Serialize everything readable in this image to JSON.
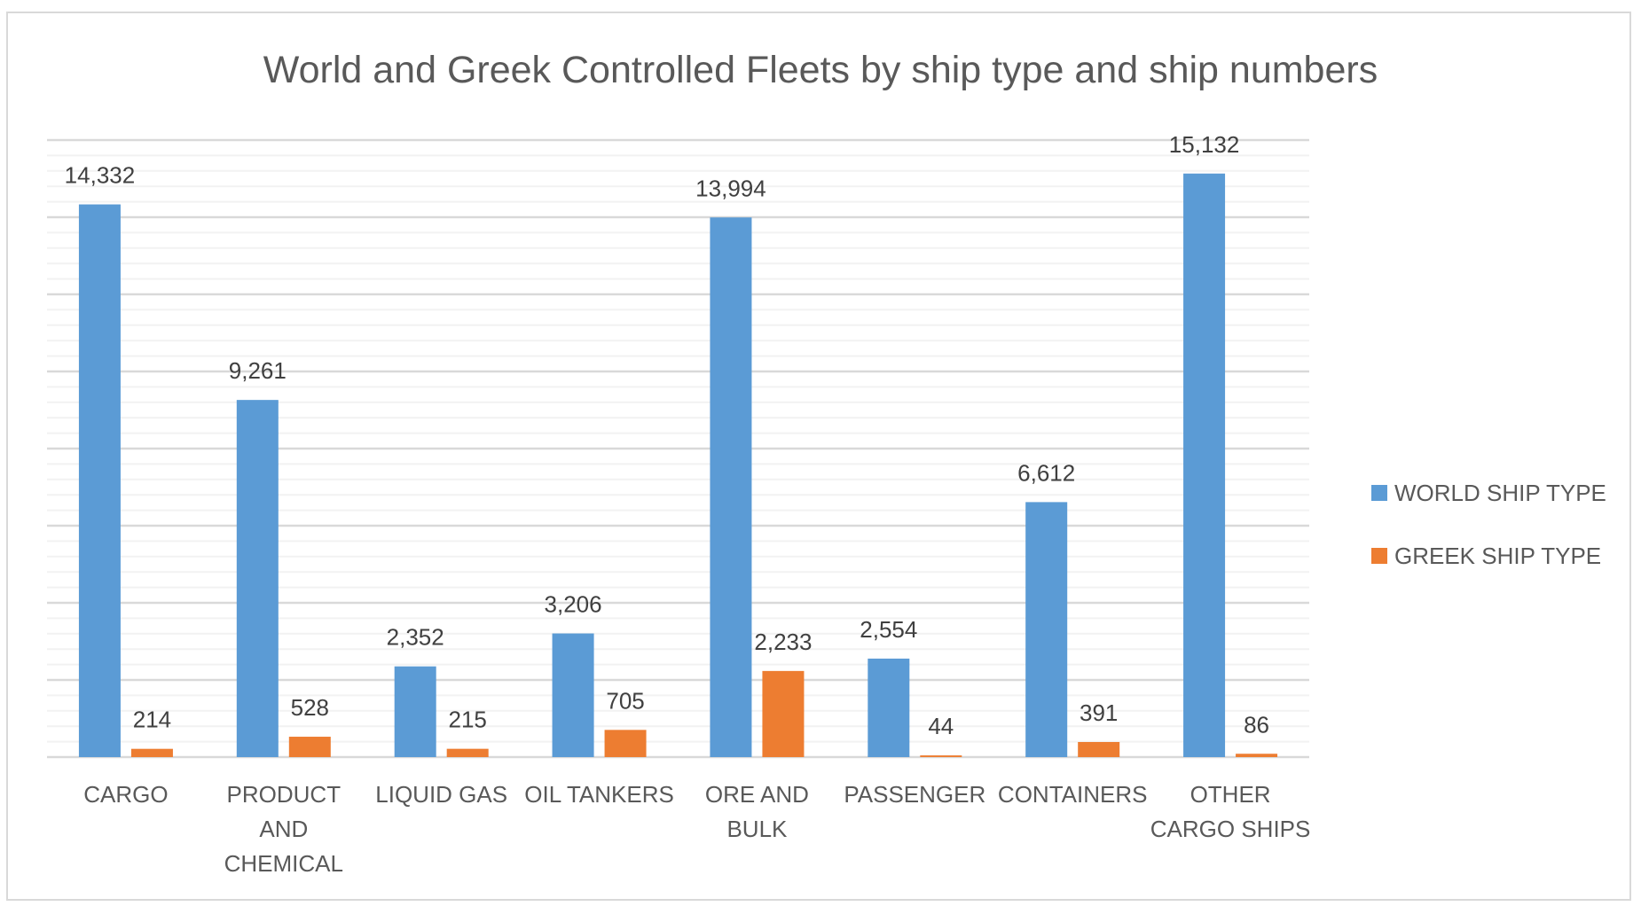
{
  "chart_data": {
    "type": "bar",
    "title": "World and Greek Controlled Fleets by ship type and ship numbers",
    "xlabel": "",
    "ylabel": "",
    "ylim": [
      0,
      16000
    ],
    "y_major_step": 2000,
    "y_minor_step": 400,
    "grid": true,
    "y_tick_labels_visible": false,
    "legend_position": "right",
    "categories": [
      [
        "CARGO"
      ],
      [
        "PRODUCT",
        "AND",
        "CHEMICAL"
      ],
      [
        "LIQUID GAS"
      ],
      [
        "OIL TANKERS"
      ],
      [
        "ORE AND",
        "BULK"
      ],
      [
        "PASSENGER"
      ],
      [
        "CONTAINERS"
      ],
      [
        "OTHER",
        "CARGO SHIPS"
      ]
    ],
    "series": [
      {
        "name": "WORLD SHIP TYPE",
        "color": "#5b9bd5",
        "values": [
          14332,
          9261,
          2352,
          3206,
          13994,
          2554,
          6612,
          15132
        ],
        "labels": [
          "14,332",
          "9,261",
          "2,352",
          "3,206",
          "13,994",
          "2,554",
          "6,612",
          "15,132"
        ]
      },
      {
        "name": "GREEK SHIP TYPE",
        "color": "#ed7d31",
        "values": [
          214,
          528,
          215,
          705,
          2233,
          44,
          391,
          86
        ],
        "labels": [
          "214",
          "528",
          "215",
          "705",
          "2,233",
          "44",
          "391",
          "86"
        ]
      }
    ]
  },
  "colors": {
    "major_grid": "#d9d9d9",
    "minor_grid": "#f2f2f2",
    "axis": "#d9d9d9",
    "text": "#595959",
    "label_text": "#404040"
  }
}
